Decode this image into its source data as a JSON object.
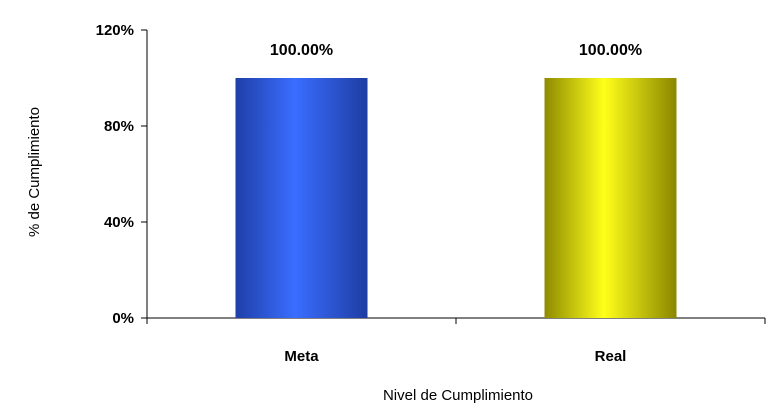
{
  "chart_data": {
    "type": "bar",
    "categories": [
      "Meta",
      "Real"
    ],
    "values": [
      100,
      100
    ],
    "data_labels": [
      "100.00%",
      "100.00%"
    ],
    "bar_colors": [
      "#2f63f0",
      "#e8e800"
    ],
    "xlabel": "Nivel de Cumplimiento",
    "ylabel": "% de Cumplimiento",
    "ylim": [
      0,
      120
    ],
    "yticks": [
      0,
      40,
      80,
      120
    ],
    "ytick_labels": [
      "0%",
      "40%",
      "80%",
      "120%"
    ],
    "grid": false,
    "legend": "none"
  }
}
